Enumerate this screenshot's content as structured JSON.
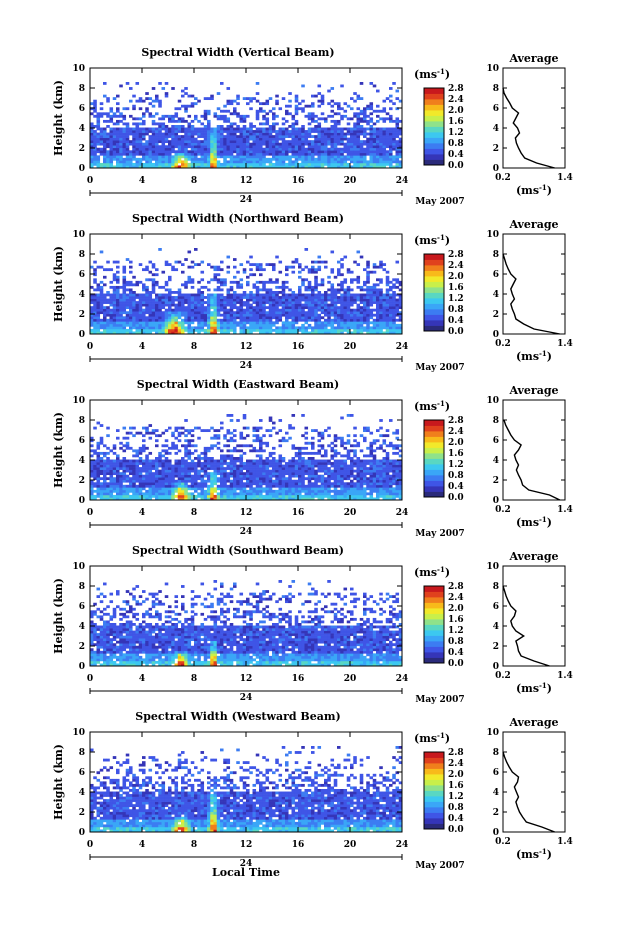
{
  "figure": {
    "date_label": "May 2007",
    "day_label": "24",
    "xlabel": "Local Time",
    "ylabel": "Height (km)",
    "unit_label": "(ms",
    "unit_exp": "-1",
    "average_title": "Average"
  },
  "colors": {
    "colormap": [
      "#2a2a7a",
      "#3535b8",
      "#3f55e6",
      "#3c7cf2",
      "#3aa6f7",
      "#3cc8f0",
      "#59d7c2",
      "#8fe28a",
      "#c9ef4a",
      "#f2e92a",
      "#f8ba1a",
      "#f07f1c",
      "#e0411d",
      "#c8191d"
    ]
  },
  "chart_data": [
    {
      "type": "heatmap",
      "title": "Spectral Width (Vertical Beam)",
      "xlim": [
        0,
        24
      ],
      "ylim": [
        0,
        10
      ],
      "xticks": [
        0,
        4,
        8,
        12,
        16,
        20,
        24
      ],
      "yticks": [
        0,
        2,
        4,
        6,
        8,
        10
      ],
      "colorbar": {
        "ticks": [
          "2.8",
          "2.4",
          "2.0",
          "1.6",
          "1.2",
          "0.8",
          "0.4",
          "0.0"
        ],
        "range": [
          0.0,
          2.8
        ]
      },
      "convection": [
        {
          "x": 7.0,
          "h": 1.6,
          "w": 1.6
        },
        {
          "x": 9.5,
          "h": 4.0,
          "w": 0.8
        }
      ],
      "average": {
        "xlim": [
          0.2,
          1.4
        ],
        "xticks": [
          "0.2",
          "1.4"
        ],
        "ylim": [
          0,
          10
        ],
        "yticks": [
          0,
          2,
          4,
          6,
          8,
          10
        ],
        "height": [
          0,
          0.5,
          1.0,
          1.5,
          2.0,
          2.5,
          3.0,
          3.5,
          4.0,
          4.5,
          5.0,
          5.5,
          6.0,
          6.5,
          7.0,
          7.5,
          8.0
        ],
        "width": [
          1.2,
          0.85,
          0.62,
          0.55,
          0.5,
          0.46,
          0.44,
          0.52,
          0.48,
          0.4,
          0.45,
          0.5,
          0.38,
          0.33,
          0.27,
          0.22,
          0.2
        ]
      }
    },
    {
      "type": "heatmap",
      "title": "Spectral Width (Northward Beam)",
      "xlim": [
        0,
        24
      ],
      "ylim": [
        0,
        10
      ],
      "xticks": [
        0,
        4,
        8,
        12,
        16,
        20,
        24
      ],
      "yticks": [
        0,
        2,
        4,
        6,
        8,
        10
      ],
      "colorbar": {
        "ticks": [
          "2.8",
          "2.4",
          "2.0",
          "1.6",
          "1.2",
          "0.8",
          "0.4",
          "0.0"
        ],
        "range": [
          0.0,
          2.8
        ]
      },
      "convection": [
        {
          "x": 6.5,
          "h": 2.2,
          "w": 2.0
        },
        {
          "x": 9.5,
          "h": 4.0,
          "w": 0.9
        }
      ],
      "average": {
        "xlim": [
          0.2,
          1.4
        ],
        "xticks": [
          "0.2",
          "1.4"
        ],
        "ylim": [
          0,
          10
        ],
        "yticks": [
          0,
          2,
          4,
          6,
          8,
          10
        ],
        "height": [
          0,
          0.5,
          1.0,
          1.5,
          2.0,
          2.5,
          3.0,
          3.5,
          4.0,
          4.5,
          5.0,
          5.5,
          6.0,
          6.5,
          7.0,
          7.5,
          8.0
        ],
        "width": [
          1.3,
          0.8,
          0.6,
          0.45,
          0.42,
          0.38,
          0.35,
          0.42,
          0.38,
          0.35,
          0.4,
          0.45,
          0.35,
          0.3,
          0.26,
          0.23,
          0.2
        ]
      }
    },
    {
      "type": "heatmap",
      "title": "Spectral Width (Eastward Beam)",
      "xlim": [
        0,
        24
      ],
      "ylim": [
        0,
        10
      ],
      "xticks": [
        0,
        4,
        8,
        12,
        16,
        20,
        24
      ],
      "yticks": [
        0,
        2,
        4,
        6,
        8,
        10
      ],
      "colorbar": {
        "ticks": [
          "2.8",
          "2.4",
          "2.0",
          "1.6",
          "1.2",
          "0.8",
          "0.4",
          "0.0"
        ],
        "range": [
          0.0,
          2.8
        ]
      },
      "convection": [
        {
          "x": 7.0,
          "h": 1.8,
          "w": 1.6
        },
        {
          "x": 9.5,
          "h": 3.0,
          "w": 0.9
        }
      ],
      "average": {
        "xlim": [
          0.2,
          1.4
        ],
        "xticks": [
          "0.2",
          "1.4"
        ],
        "ylim": [
          0,
          10
        ],
        "yticks": [
          0,
          2,
          4,
          6,
          8,
          10
        ],
        "height": [
          0,
          0.5,
          1.0,
          1.5,
          2.0,
          2.5,
          3.0,
          3.5,
          4.0,
          4.5,
          5.0,
          5.5,
          6.0,
          6.5,
          7.0,
          7.5,
          8.0
        ],
        "width": [
          1.3,
          1.1,
          0.7,
          0.58,
          0.55,
          0.5,
          0.46,
          0.5,
          0.45,
          0.42,
          0.5,
          0.55,
          0.42,
          0.35,
          0.3,
          0.25,
          0.22
        ]
      }
    },
    {
      "type": "heatmap",
      "title": "Spectral Width (Southward Beam)",
      "xlim": [
        0,
        24
      ],
      "ylim": [
        0,
        10
      ],
      "xticks": [
        0,
        4,
        8,
        12,
        16,
        20,
        24
      ],
      "yticks": [
        0,
        2,
        4,
        6,
        8,
        10
      ],
      "colorbar": {
        "ticks": [
          "2.8",
          "2.4",
          "2.0",
          "1.6",
          "1.2",
          "0.8",
          "0.4",
          "0.0"
        ],
        "range": [
          0.0,
          2.8
        ]
      },
      "convection": [
        {
          "x": 7.0,
          "h": 1.5,
          "w": 1.4
        },
        {
          "x": 9.5,
          "h": 2.5,
          "w": 0.8
        }
      ],
      "average": {
        "xlim": [
          0.2,
          1.4
        ],
        "xticks": [
          "0.2",
          "1.4"
        ],
        "ylim": [
          0,
          10
        ],
        "yticks": [
          0,
          2,
          4,
          6,
          8,
          10
        ],
        "height": [
          0,
          0.5,
          1.0,
          1.5,
          2.0,
          2.5,
          3.0,
          3.5,
          4.0,
          4.5,
          5.0,
          5.5,
          6.0,
          6.5,
          7.0,
          7.5,
          8.0
        ],
        "width": [
          1.1,
          0.8,
          0.55,
          0.5,
          0.48,
          0.45,
          0.6,
          0.45,
          0.38,
          0.35,
          0.42,
          0.45,
          0.35,
          0.3,
          0.26,
          0.23,
          0.2
        ]
      }
    },
    {
      "type": "heatmap",
      "title": "Spectral Width (Westward Beam)",
      "xlim": [
        0,
        24
      ],
      "ylim": [
        0,
        10
      ],
      "xticks": [
        0,
        4,
        8,
        12,
        16,
        20,
        24
      ],
      "yticks": [
        0,
        2,
        4,
        6,
        8,
        10
      ],
      "colorbar": {
        "ticks": [
          "2.8",
          "2.4",
          "2.0",
          "1.6",
          "1.2",
          "0.8",
          "0.4",
          "0.0"
        ],
        "range": [
          0.0,
          2.8
        ]
      },
      "convection": [
        {
          "x": 7.0,
          "h": 1.6,
          "w": 1.6
        },
        {
          "x": 9.5,
          "h": 4.2,
          "w": 0.9
        }
      ],
      "average": {
        "xlim": [
          0.2,
          1.4
        ],
        "xticks": [
          "0.2",
          "1.4"
        ],
        "ylim": [
          0,
          10
        ],
        "yticks": [
          0,
          2,
          4,
          6,
          8,
          10
        ],
        "height": [
          0,
          0.5,
          1.0,
          1.5,
          2.0,
          2.5,
          3.0,
          3.5,
          4.0,
          4.5,
          5.0,
          5.5,
          6.0,
          6.5,
          7.0,
          7.5,
          8.0
        ],
        "width": [
          1.2,
          0.95,
          0.65,
          0.58,
          0.52,
          0.48,
          0.45,
          0.5,
          0.46,
          0.42,
          0.48,
          0.5,
          0.38,
          0.32,
          0.27,
          0.23,
          0.2
        ]
      }
    }
  ]
}
